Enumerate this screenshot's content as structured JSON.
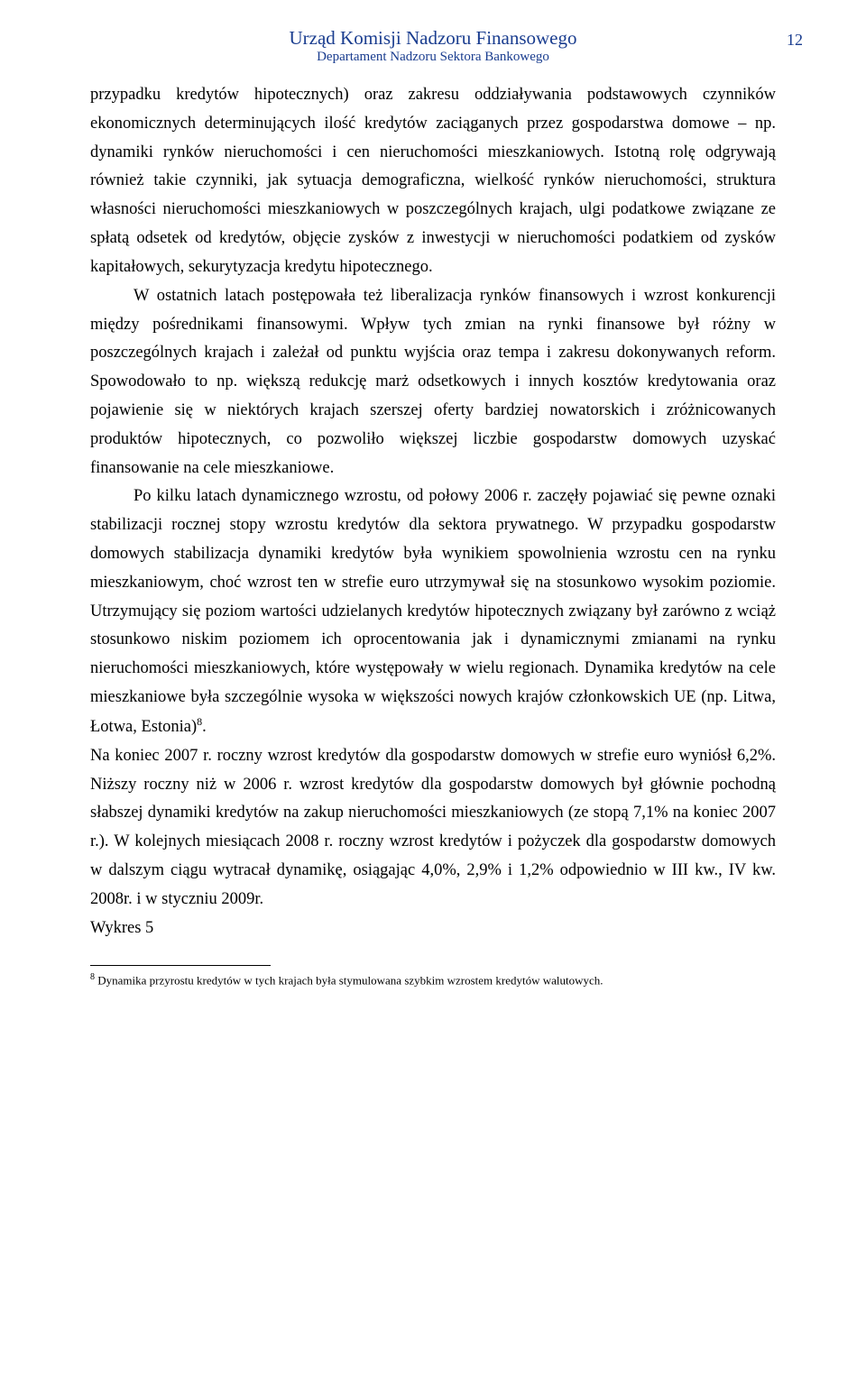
{
  "header": {
    "title": "Urząd Komisji Nadzoru Finansowego",
    "subtitle": "Departament Nadzoru Sektora Bankowego",
    "pageNumber": "12"
  },
  "paragraphs": {
    "p1": "przypadku kredytów hipotecznych) oraz zakresu oddziaływania podstawowych czynników ekonomicznych determinujących ilość kredytów zaciąganych przez gospodarstwa domowe – np. dynamiki rynków nieruchomości i cen nieruchomości mieszkaniowych. Istotną rolę odgrywają również takie czynniki, jak sytuacja demograficzna, wielkość rynków nieruchomości, struktura własności nieruchomości mieszkaniowych w poszczególnych krajach, ulgi podatkowe związane ze spłatą odsetek od kredytów, objęcie zysków z inwestycji w nieruchomości podatkiem od zysków kapitałowych, sekurytyzacja kredytu hipotecznego.",
    "p2": "W ostatnich latach postępowała też liberalizacja rynków finansowych i wzrost konkurencji między pośrednikami finansowymi. Wpływ tych zmian na rynki finansowe był różny w poszczególnych krajach i zależał od punktu wyjścia oraz tempa i zakresu dokonywanych reform. Spowodowało to np. większą redukcję marż odsetkowych i innych kosztów kredytowania oraz pojawienie się w niektórych krajach szerszej oferty bardziej nowatorskich i zróżnicowanych produktów hipotecznych, co pozwoliło większej liczbie gospodarstw domowych uzyskać finansowanie na cele mieszkaniowe.",
    "p3a": "Po kilku latach dynamicznego wzrostu, od połowy 2006 r. zaczęły pojawiać się pewne oznaki stabilizacji rocznej stopy wzrostu kredytów dla sektora prywatnego. W przypadku gospodarstw domowych stabilizacja dynamiki kredytów była wynikiem spowolnienia wzrostu cen na rynku mieszkaniowym, choć wzrost ten w strefie euro utrzymywał się na stosunkowo wysokim poziomie. Utrzymujący się poziom wartości udzielanych kredytów hipotecznych związany był zarówno z wciąż stosunkowo niskim poziomem ich oprocentowania jak i dynamicznymi zmianami na rynku nieruchomości mieszkaniowych, które występowały w wielu regionach. Dynamika kredytów na cele mieszkaniowe była szczególnie wysoka w większości nowych krajów członkowskich UE (np. Litwa, Łotwa, Estonia)",
    "p3b": ".",
    "p4": "Na koniec 2007 r. roczny wzrost kredytów dla gospodarstw domowych w strefie euro wyniósł 6,2%. Niższy roczny niż w 2006 r. wzrost kredytów dla gospodarstw domowych był głównie pochodną słabszej dynamiki kredytów na zakup nieruchomości mieszkaniowych (ze stopą 7,1% na koniec 2007 r.). W kolejnych miesiącach 2008 r. roczny wzrost kredytów i pożyczek dla gospodarstw domowych w dalszym ciągu wytracał dynamikę, osiągając 4,0%, 2,9% i 1,2% odpowiednio w III kw., IV kw. 2008r. i w styczniu 2009r.",
    "p5": "Wykres 5"
  },
  "footnote": {
    "marker": "8",
    "text": " Dynamika przyrostu kredytów w tych krajach była stymulowana szybkim wzrostem kredytów walutowych."
  },
  "colors": {
    "headerColor": "#1a3d8f",
    "textColor": "#000000",
    "backgroundColor": "#ffffff"
  },
  "typography": {
    "headerTitleSize": 21,
    "headerSubtitleSize": 15,
    "bodySize": 18.5,
    "footnoteSize": 13,
    "lineHeight": 1.72,
    "fontFamily": "Times New Roman"
  }
}
